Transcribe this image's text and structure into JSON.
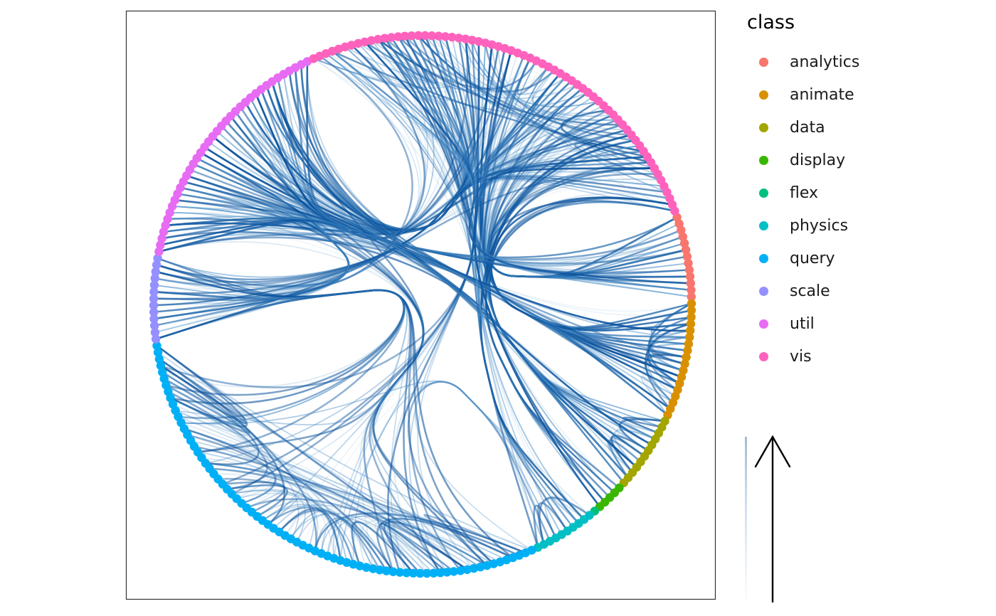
{
  "legend": {
    "title": "class",
    "items": [
      {
        "label": "analytics",
        "color": "#F8766D"
      },
      {
        "label": "animate",
        "color": "#D89000"
      },
      {
        "label": "data",
        "color": "#A3A500"
      },
      {
        "label": "display",
        "color": "#39B600"
      },
      {
        "label": "flex",
        "color": "#00BF7D"
      },
      {
        "label": "physics",
        "color": "#00BFC4"
      },
      {
        "label": "query",
        "color": "#00B0F6"
      },
      {
        "label": "scale",
        "color": "#9590FF"
      },
      {
        "label": "util",
        "color": "#E76BF3"
      },
      {
        "label": "vis",
        "color": "#FF62BC"
      }
    ]
  },
  "node_counts": {
    "analytics": 13,
    "animate": 18,
    "data": 12,
    "display": 5,
    "flex": 1,
    "physics": 10,
    "query": 74,
    "scale": 13,
    "util": 38,
    "vis": 66
  },
  "edge_color_dark": "#08519C",
  "edge_color_light": "#C6DBEF",
  "guide": {
    "type": "edge-alpha-arrow",
    "icon": "up-arrow-icon"
  }
}
